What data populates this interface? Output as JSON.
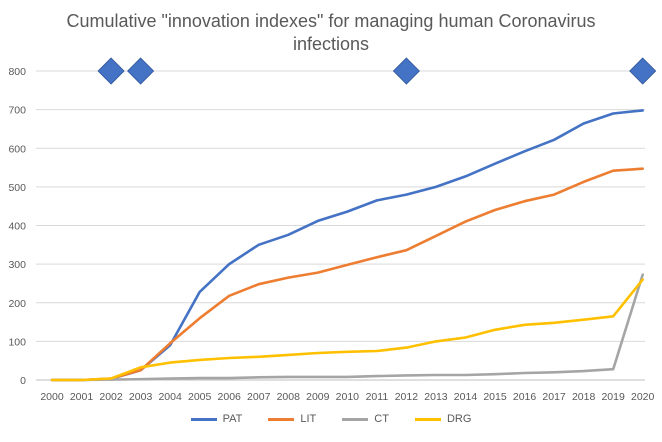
{
  "chart_data": {
    "type": "line",
    "title": "Cumulative \"innovation indexes\" for managing human Coronavirus\ninfections",
    "xlabel": "",
    "ylabel": "",
    "ylim": [
      0,
      800
    ],
    "yticks": [
      0,
      100,
      200,
      300,
      400,
      500,
      600,
      700,
      800
    ],
    "grid": true,
    "legend_position": "bottom",
    "x": [
      "2000",
      "2001",
      "2002",
      "2003",
      "2004",
      "2005",
      "2006",
      "2007",
      "2008",
      "2009",
      "2010",
      "2011",
      "2012",
      "2013",
      "2014",
      "2015",
      "2016",
      "2017",
      "2018",
      "2019",
      "2020"
    ],
    "series": [
      {
        "name": "PAT",
        "color": "#4472C4",
        "values": [
          0,
          0,
          3,
          25,
          90,
          228,
          300,
          350,
          376,
          412,
          436,
          465,
          480,
          500,
          527,
          560,
          592,
          622,
          664,
          690,
          698
        ]
      },
      {
        "name": "LIT",
        "color": "#ED7D31",
        "values": [
          0,
          0,
          4,
          25,
          95,
          160,
          218,
          248,
          265,
          278,
          298,
          318,
          336,
          373,
          410,
          440,
          463,
          480,
          513,
          542,
          547
        ]
      },
      {
        "name": "CT",
        "color": "#A5A5A5",
        "values": [
          0,
          0,
          1,
          2,
          4,
          5,
          5,
          7,
          8,
          8,
          8,
          10,
          12,
          13,
          13,
          15,
          18,
          20,
          23,
          28,
          273
        ]
      },
      {
        "name": "DRG",
        "color": "#FFC000",
        "values": [
          0,
          0,
          4,
          33,
          45,
          52,
          57,
          60,
          65,
          70,
          73,
          75,
          84,
          100,
          110,
          130,
          143,
          148,
          156,
          165,
          260
        ]
      }
    ],
    "markers": {
      "shape": "diamond",
      "color": "#4472C4",
      "x": [
        "2002",
        "2003",
        "2012",
        "2020"
      ],
      "y": 800
    }
  }
}
